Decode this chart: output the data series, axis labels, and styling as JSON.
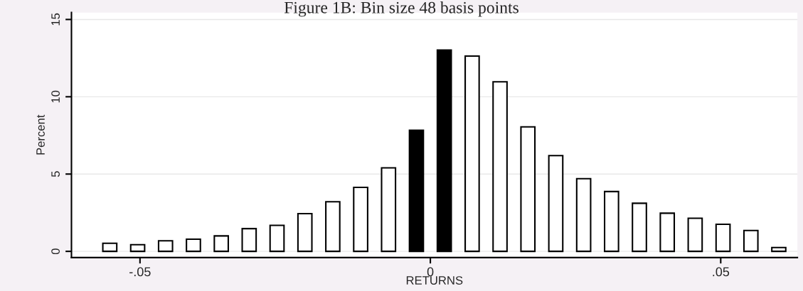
{
  "chart_data": {
    "type": "histogram",
    "title": "Figure 1B: Bin size 48 basis points",
    "xlabel": "RETURNS",
    "ylabel": "Percent",
    "bins": [
      -0.0576,
      -0.0528,
      -0.048,
      -0.0432,
      -0.0384,
      -0.0336,
      -0.0288,
      -0.024,
      -0.0192,
      -0.0144,
      -0.0096,
      -0.0048,
      0,
      0.0048,
      0.0096,
      0.0144,
      0.0192,
      0.024,
      0.0288,
      0.0336,
      0.0384,
      0.0432,
      0.048,
      0.0528,
      0.0576,
      0.0624
    ],
    "values": [
      0.52,
      0.43,
      0.68,
      0.79,
      1.0,
      1.47,
      1.68,
      2.44,
      3.21,
      4.14,
      5.4,
      7.83,
      13.02,
      12.63,
      10.97,
      8.05,
      6.19,
      4.7,
      3.87,
      3.11,
      2.47,
      2.14,
      1.75,
      1.35,
      0.25
    ],
    "colors": [
      "#ffffff",
      "#ffffff",
      "#ffffff",
      "#ffffff",
      "#ffffff",
      "#ffffff",
      "#ffffff",
      "#ffffff",
      "#ffffff",
      "#ffffff",
      "#ffffff",
      "#000000",
      "#000000",
      "#ffffff",
      "#ffffff",
      "#ffffff",
      "#ffffff",
      "#ffffff",
      "#ffffff",
      "#ffffff",
      "#ffffff",
      "#ffffff",
      "#ffffff",
      "#ffffff",
      "#ffffff"
    ],
    "xlim": [
      -0.0618,
      0.0632
    ],
    "ylim": [
      -0.4,
      15.45
    ],
    "xticks": [
      {
        "value": -0.05,
        "label": "-.05"
      },
      0,
      {
        "value": 0.05,
        "label": ".05"
      }
    ],
    "yticks": [
      0,
      5,
      10,
      15
    ],
    "grid": "y"
  }
}
